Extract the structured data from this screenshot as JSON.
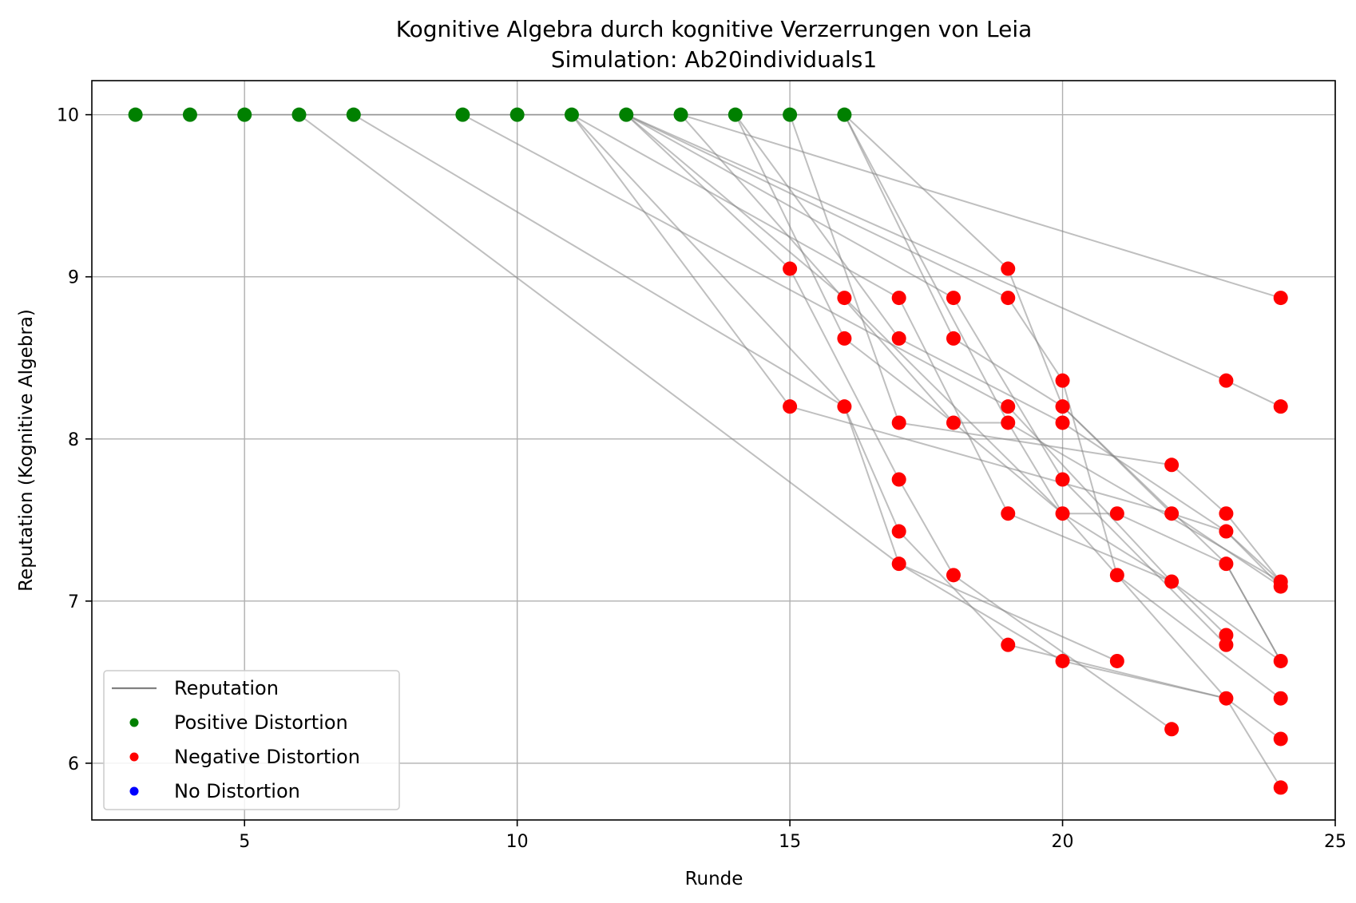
{
  "chart_data": {
    "type": "scatter",
    "title": "Kognitive Algebra durch kognitive Verzerrungen von Leia",
    "subtitle": "Simulation: Ab20individuals1",
    "xlabel": "Runde",
    "ylabel": "Reputation (Kognitive Algebra)",
    "xlim": [
      2.2,
      25
    ],
    "ylim": [
      5.65,
      10.21
    ],
    "xticks": [
      5,
      10,
      15,
      20,
      25
    ],
    "yticks": [
      6,
      7,
      8,
      9,
      10
    ],
    "grid": true,
    "legend_position": "lower-left",
    "legend": [
      {
        "label": "Reputation",
        "kind": "line",
        "color": "#808080"
      },
      {
        "label": "Positive Distortion",
        "kind": "marker",
        "color": "#008000"
      },
      {
        "label": "Negative Distortion",
        "kind": "marker",
        "color": "#ff0000"
      },
      {
        "label": "No Distortion",
        "kind": "marker",
        "color": "#0000ff"
      }
    ],
    "positive_points": [
      [
        3,
        10
      ],
      [
        4,
        10
      ],
      [
        5,
        10
      ],
      [
        6,
        10
      ],
      [
        7,
        10
      ],
      [
        9,
        10
      ],
      [
        10,
        10
      ],
      [
        11,
        10
      ],
      [
        12,
        10
      ],
      [
        13,
        10
      ],
      [
        14,
        10
      ],
      [
        15,
        10
      ],
      [
        16,
        10
      ]
    ],
    "negative_points": [
      [
        15,
        9.05
      ],
      [
        15,
        8.2
      ],
      [
        16,
        8.87
      ],
      [
        16,
        8.62
      ],
      [
        16,
        8.2
      ],
      [
        17,
        8.87
      ],
      [
        17,
        8.62
      ],
      [
        17,
        8.1
      ],
      [
        17,
        7.75
      ],
      [
        17,
        7.43
      ],
      [
        17,
        7.23
      ],
      [
        18,
        8.87
      ],
      [
        18,
        8.62
      ],
      [
        18,
        8.1
      ],
      [
        18,
        7.16
      ],
      [
        19,
        9.05
      ],
      [
        19,
        8.87
      ],
      [
        19,
        8.2
      ],
      [
        19,
        8.1
      ],
      [
        19,
        7.54
      ],
      [
        19,
        6.73
      ],
      [
        20,
        8.36
      ],
      [
        20,
        8.2
      ],
      [
        20,
        8.1
      ],
      [
        20,
        7.75
      ],
      [
        20,
        7.54
      ],
      [
        20,
        6.63
      ],
      [
        21,
        7.54
      ],
      [
        21,
        7.16
      ],
      [
        21,
        6.63
      ],
      [
        22,
        7.84
      ],
      [
        22,
        7.54
      ],
      [
        22,
        7.12
      ],
      [
        22,
        6.21
      ],
      [
        23,
        8.36
      ],
      [
        23,
        7.54
      ],
      [
        23,
        7.43
      ],
      [
        23,
        7.23
      ],
      [
        23,
        6.79
      ],
      [
        23,
        6.73
      ],
      [
        23,
        6.4
      ],
      [
        24,
        8.87
      ],
      [
        24,
        8.2
      ],
      [
        24,
        7.12
      ],
      [
        24,
        7.09
      ],
      [
        24,
        6.63
      ],
      [
        24,
        6.4
      ],
      [
        24,
        6.15
      ],
      [
        24,
        5.85
      ]
    ],
    "reputation_series": [
      [
        [
          3,
          10
        ],
        [
          4,
          10
        ],
        [
          5,
          10
        ],
        [
          6,
          10
        ],
        [
          7,
          10
        ],
        [
          9,
          10
        ],
        [
          10,
          10
        ],
        [
          11,
          10
        ],
        [
          12,
          10
        ],
        [
          13,
          10
        ],
        [
          14,
          10
        ],
        [
          15,
          10
        ],
        [
          16,
          10
        ]
      ],
      [
        [
          6,
          10
        ],
        [
          17,
          7.23
        ],
        [
          21,
          6.63
        ]
      ],
      [
        [
          7,
          10
        ],
        [
          16,
          8.2
        ],
        [
          17,
          7.23
        ],
        [
          20,
          6.63
        ],
        [
          23,
          6.4
        ],
        [
          24,
          5.85
        ]
      ],
      [
        [
          9,
          10
        ],
        [
          19,
          8.2
        ],
        [
          22,
          7.12
        ],
        [
          24,
          6.63
        ]
      ],
      [
        [
          11,
          10
        ],
        [
          15,
          8.2
        ],
        [
          22,
          7.54
        ],
        [
          24,
          7.09
        ]
      ],
      [
        [
          11,
          10
        ],
        [
          16,
          8.2
        ],
        [
          17,
          7.43
        ],
        [
          19,
          6.73
        ],
        [
          23,
          6.4
        ]
      ],
      [
        [
          11,
          10
        ],
        [
          17,
          8.87
        ],
        [
          19,
          7.54
        ],
        [
          22,
          7.12
        ]
      ],
      [
        [
          12,
          10
        ],
        [
          15,
          9.05
        ],
        [
          17,
          7.75
        ],
        [
          18,
          7.16
        ],
        [
          22,
          6.21
        ]
      ],
      [
        [
          12,
          10
        ],
        [
          18,
          8.87
        ],
        [
          20,
          7.75
        ],
        [
          23,
          6.73
        ]
      ],
      [
        [
          12,
          10
        ],
        [
          16,
          8.87
        ],
        [
          20,
          7.54
        ],
        [
          23,
          6.4
        ],
        [
          24,
          6.15
        ]
      ],
      [
        [
          12,
          10
        ],
        [
          19,
          8.87
        ],
        [
          20,
          8.36
        ],
        [
          21,
          7.16
        ],
        [
          24,
          6.4
        ]
      ],
      [
        [
          13,
          10
        ],
        [
          18,
          8.1
        ],
        [
          20,
          7.54
        ],
        [
          21,
          7.54
        ],
        [
          23,
          7.23
        ],
        [
          24,
          6.63
        ]
      ],
      [
        [
          14,
          10
        ],
        [
          16,
          8.62
        ],
        [
          18,
          8.1
        ],
        [
          19,
          8.1
        ],
        [
          24,
          7.12
        ]
      ],
      [
        [
          14,
          10
        ],
        [
          17,
          8.62
        ],
        [
          20,
          8.1
        ],
        [
          23,
          7.43
        ],
        [
          24,
          7.09
        ]
      ],
      [
        [
          15,
          10
        ],
        [
          17,
          8.1
        ],
        [
          22,
          7.84
        ],
        [
          23,
          7.54
        ],
        [
          24,
          7.12
        ]
      ],
      [
        [
          16,
          10
        ],
        [
          19,
          8.1
        ],
        [
          20,
          7.54
        ],
        [
          22,
          7.12
        ],
        [
          23,
          6.79
        ]
      ],
      [
        [
          16,
          10
        ],
        [
          18,
          8.62
        ],
        [
          20,
          8.2
        ],
        [
          23,
          7.23
        ],
        [
          24,
          6.63
        ]
      ],
      [
        [
          16,
          10
        ],
        [
          19,
          9.05
        ],
        [
          20,
          8.2
        ],
        [
          22,
          7.54
        ],
        [
          23,
          7.43
        ],
        [
          24,
          7.12
        ]
      ],
      [
        [
          12,
          10
        ],
        [
          23,
          8.36
        ],
        [
          24,
          8.2
        ]
      ],
      [
        [
          13,
          10
        ],
        [
          24,
          8.87
        ]
      ]
    ]
  }
}
